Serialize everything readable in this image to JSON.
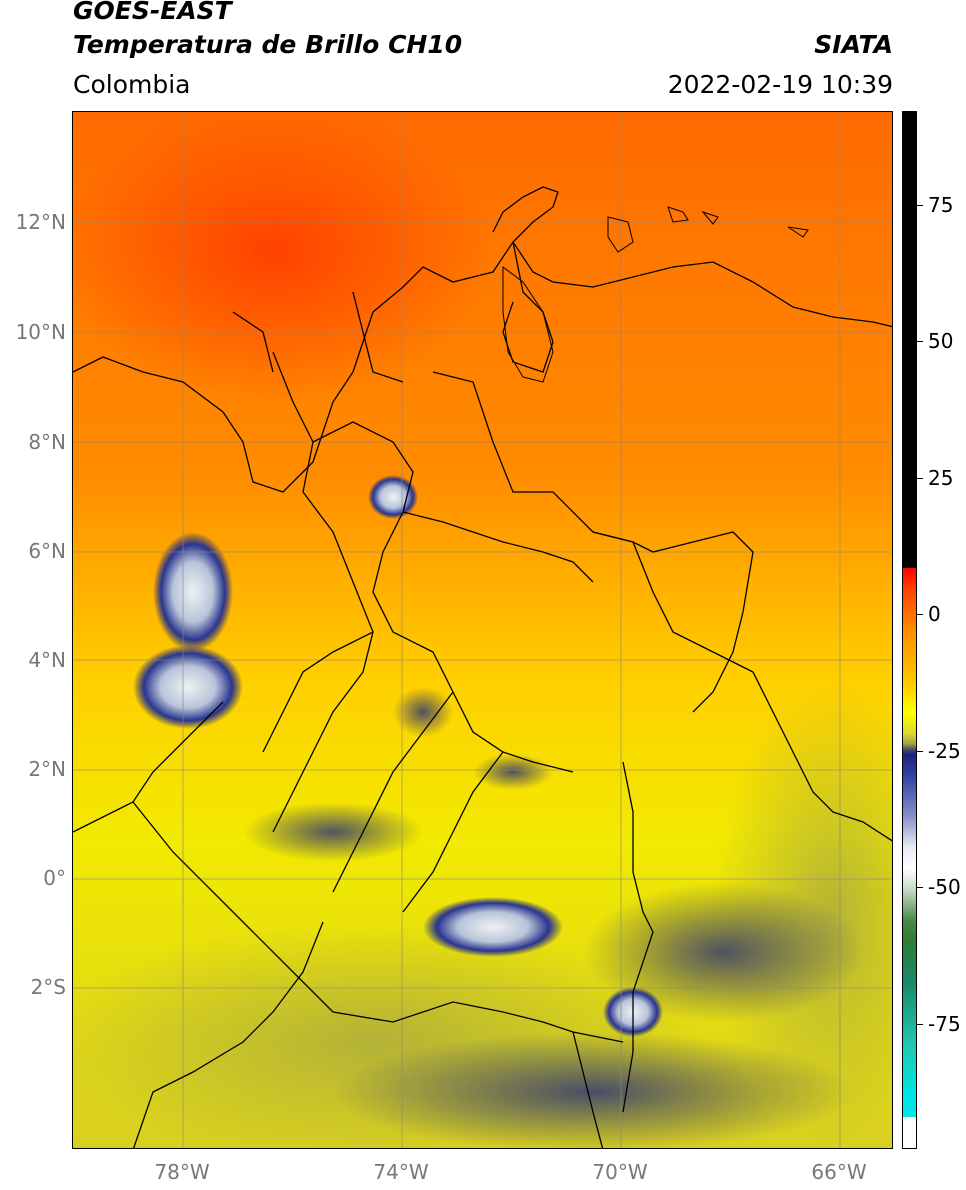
{
  "header": {
    "satellite": "GOES-EAST",
    "product": "Temperatura de Brillo CH10",
    "organization": "SIATA",
    "region": "Colombia",
    "datetime": "2022-02-19 10:39"
  },
  "map": {
    "lat_labels": [
      "12°N",
      "10°N",
      "8°N",
      "6°N",
      "4°N",
      "2°N",
      "0°",
      "2°S"
    ],
    "lon_labels": [
      "78°W",
      "74°W",
      "70°W",
      "66°W"
    ],
    "colors": {
      "warm_orange": "#ff7a00",
      "red_orange": "#ff4a00",
      "yellow": "#f2e800",
      "olive": "#c9c22a",
      "deep_blue": "#1a237e",
      "white_cloud": "#f0f4f8",
      "gridline": "#888888",
      "border": "#000000"
    }
  },
  "colorbar": {
    "labels": [
      "75",
      "50",
      "25",
      "0",
      "-25",
      "-50",
      "-75"
    ],
    "colors": [
      "#000000",
      "#ff0000",
      "#ff8c00",
      "#ffff00",
      "#b5b53a",
      "#1a237e",
      "#ffffff",
      "#2e7d32",
      "#00e5e5",
      "#ffffff"
    ]
  }
}
